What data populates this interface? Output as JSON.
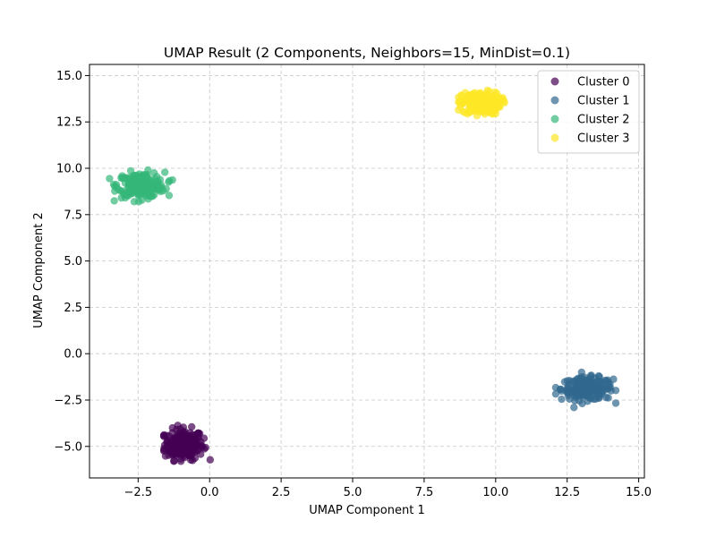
{
  "chart_data": {
    "type": "scatter",
    "title": "UMAP Result (2 Components, Neighbors=15, MinDist=0.1)",
    "xlabel": "UMAP Component 1",
    "ylabel": "UMAP Component 2",
    "xlim": [
      -4.2,
      15.2
    ],
    "ylim": [
      -6.7,
      15.6
    ],
    "xticks": [
      -2.5,
      0.0,
      2.5,
      5.0,
      7.5,
      10.0,
      12.5,
      15.0
    ],
    "yticks": [
      -5.0,
      -2.5,
      0.0,
      2.5,
      5.0,
      7.5,
      10.0,
      12.5,
      15.0
    ],
    "xtick_labels": [
      "−2.5",
      "0.0",
      "2.5",
      "5.0",
      "7.5",
      "10.0",
      "12.5",
      "15.0"
    ],
    "ytick_labels": [
      "−5.0",
      "−2.5",
      "0.0",
      "2.5",
      "5.0",
      "7.5",
      "10.0",
      "12.5",
      "15.0"
    ],
    "grid": true,
    "legend_position": "top-right",
    "series": [
      {
        "name": "Cluster 0",
        "color": "#440154",
        "center": [
          -0.9,
          -4.9
        ],
        "spread": [
          0.45,
          0.55
        ],
        "x_range": [
          -1.6,
          0.3
        ],
        "y_range": [
          -5.8,
          -3.6
        ]
      },
      {
        "name": "Cluster 1",
        "color": "#31688e",
        "center": [
          13.2,
          -1.9
        ],
        "spread": [
          0.6,
          0.4
        ],
        "x_range": [
          12.1,
          14.2
        ],
        "y_range": [
          -2.9,
          -1.0
        ]
      },
      {
        "name": "Cluster 2",
        "color": "#35b779",
        "center": [
          -2.4,
          9.1
        ],
        "spread": [
          0.55,
          0.45
        ],
        "x_range": [
          -3.5,
          -1.3
        ],
        "y_range": [
          8.2,
          10.2
        ]
      },
      {
        "name": "Cluster 3",
        "color": "#fde725",
        "center": [
          9.5,
          13.5
        ],
        "spread": [
          0.45,
          0.4
        ],
        "x_range": [
          8.7,
          10.6
        ],
        "y_range": [
          12.5,
          14.4
        ]
      }
    ]
  }
}
